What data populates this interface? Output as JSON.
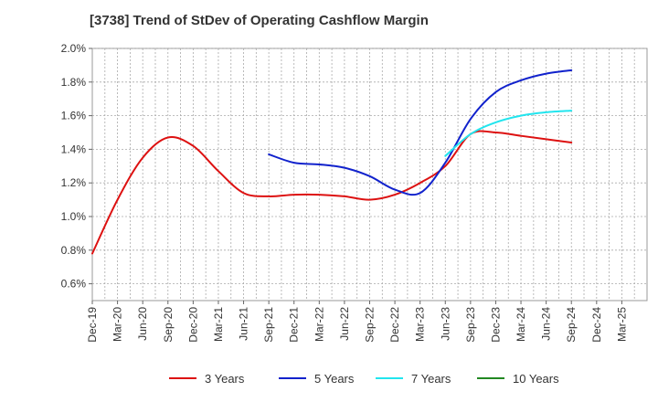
{
  "chart_data": {
    "type": "line",
    "title": "[3738]  Trend of StDev of Operating Cashflow Margin",
    "xlabel": "",
    "ylabel": "",
    "ylim": [
      0.5,
      2.0
    ],
    "y_ticks": [
      0.6,
      0.8,
      1.0,
      1.2,
      1.4,
      1.6,
      1.8,
      2.0
    ],
    "y_tick_labels": [
      "0.6%",
      "0.8%",
      "1.0%",
      "1.2%",
      "1.4%",
      "1.6%",
      "1.8%",
      "2.0%"
    ],
    "x_tick_labels": [
      "Dec-19",
      "Mar-20",
      "Jun-20",
      "Sep-20",
      "Dec-20",
      "Mar-21",
      "Jun-21",
      "Sep-21",
      "Dec-21",
      "Mar-22",
      "Jun-22",
      "Sep-22",
      "Dec-22",
      "Mar-23",
      "Jun-23",
      "Sep-23",
      "Dec-23",
      "Mar-24",
      "Jun-24",
      "Sep-24",
      "Dec-24",
      "Mar-25"
    ],
    "grid": true,
    "legend_position": "bottom",
    "series": [
      {
        "name": "3 Years",
        "color": "#dd1111",
        "start_index": 0,
        "values": [
          0.78,
          1.1,
          1.35,
          1.47,
          1.42,
          1.27,
          1.14,
          1.12,
          1.13,
          1.13,
          1.12,
          1.1,
          1.13,
          1.2,
          1.3,
          1.49,
          1.5,
          1.48,
          1.46,
          1.44
        ]
      },
      {
        "name": "5 Years",
        "color": "#1122cc",
        "start_index": 7,
        "values": [
          1.37,
          1.32,
          1.31,
          1.29,
          1.24,
          1.16,
          1.14,
          1.32,
          1.58,
          1.74,
          1.81,
          1.85,
          1.87
        ]
      },
      {
        "name": "7 Years",
        "color": "#22e5ee",
        "start_index": 14,
        "values": [
          1.36,
          1.49,
          1.56,
          1.6,
          1.62,
          1.63
        ]
      },
      {
        "name": "10 Years",
        "color": "#228822",
        "start_index": 0,
        "values": []
      }
    ]
  }
}
